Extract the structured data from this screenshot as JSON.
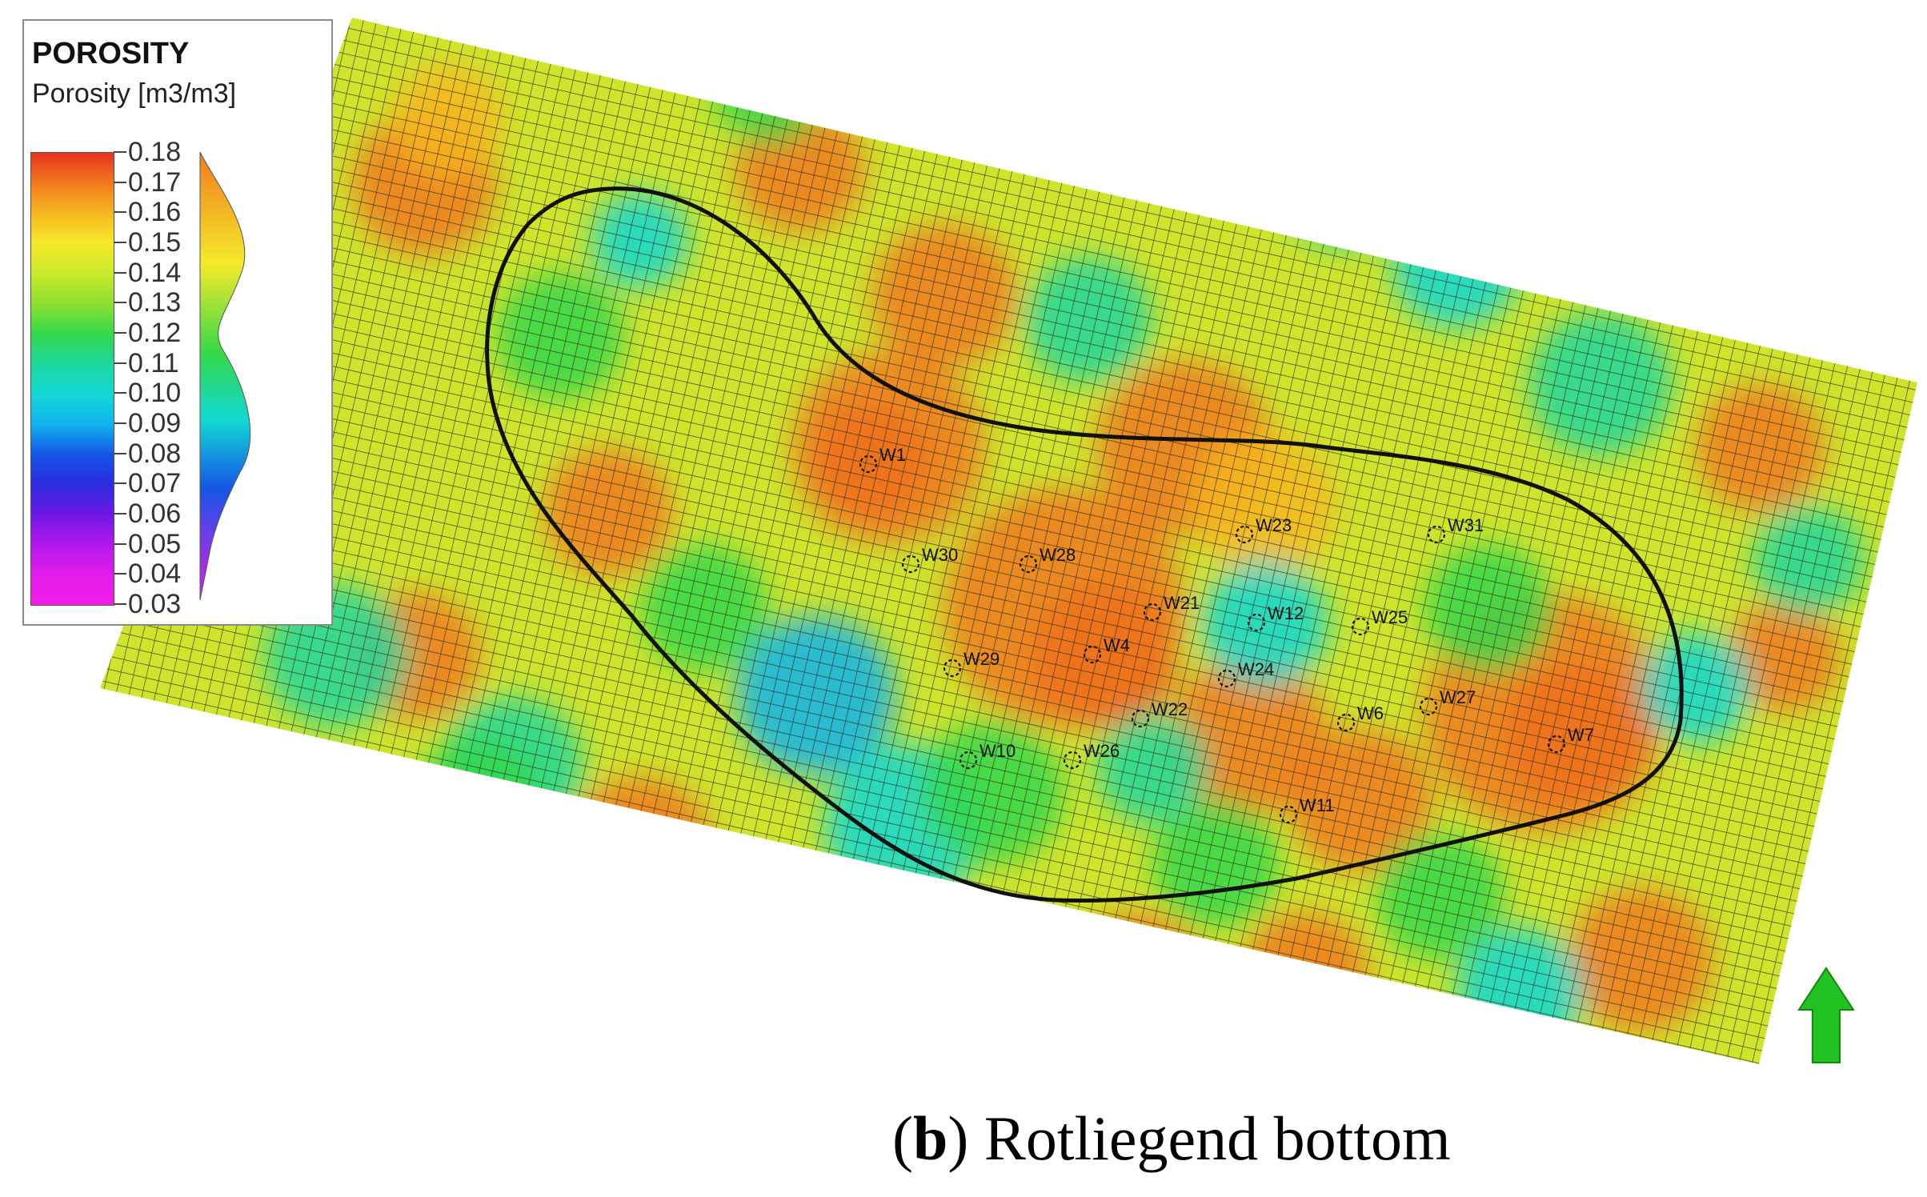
{
  "legend": {
    "title": "POROSITY",
    "subtitle": "Porosity [m3/m3]",
    "ticks": [
      "0.18",
      "0.17",
      "0.16",
      "0.15",
      "0.14",
      "0.13",
      "0.12",
      "0.11",
      "0.10",
      "0.09",
      "0.08",
      "0.07",
      "0.06",
      "0.05",
      "0.04",
      "0.03"
    ],
    "colors": [
      "#e8321e",
      "#f07a1e",
      "#f7b71f",
      "#f5ea2a",
      "#c9ea2c",
      "#8fe02f",
      "#34d84a",
      "#1ed79c",
      "#12d8d4",
      "#10b4ee",
      "#1456e6",
      "#2b2be0",
      "#6d18e6",
      "#b218ec",
      "#e21cec",
      "#f21ee8"
    ]
  },
  "wells": [
    {
      "name": "W1"
    },
    {
      "name": "W30"
    },
    {
      "name": "W28"
    },
    {
      "name": "W23"
    },
    {
      "name": "W31"
    },
    {
      "name": "W21"
    },
    {
      "name": "W12"
    },
    {
      "name": "W25"
    },
    {
      "name": "W4"
    },
    {
      "name": "W29"
    },
    {
      "name": "W24"
    },
    {
      "name": "W22"
    },
    {
      "name": "W6"
    },
    {
      "name": "W27"
    },
    {
      "name": "W7"
    },
    {
      "name": "W10"
    },
    {
      "name": "W26"
    },
    {
      "name": "W11"
    }
  ],
  "north_arrow": {
    "color": "#21c221"
  },
  "caption": {
    "letter": "b",
    "open": "(",
    "close": ")",
    "text": " Rotliegend bottom"
  }
}
